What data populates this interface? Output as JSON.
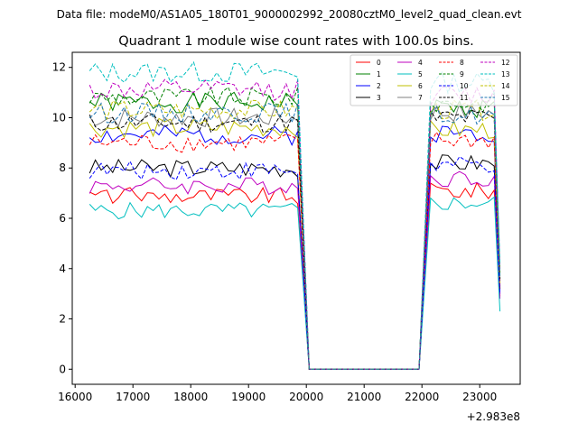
{
  "chart_data": {
    "type": "line",
    "suptitle": "Data file: modeM0/AS1A05_180T01_9000002992_20080cztM0_level2_quad_clean.evt",
    "title": "Quadrant 1 module wise count rates with 100.0s bins.",
    "xlabel": "",
    "ylabel": "",
    "x_offset_label": "+2.983e8",
    "xlim": [
      15950,
      23700
    ],
    "ylim": [
      -0.6,
      12.6
    ],
    "x_ticks": [
      16000,
      17000,
      18000,
      19000,
      20000,
      21000,
      22000,
      23000
    ],
    "y_ticks": [
      0,
      2,
      4,
      6,
      8,
      10,
      12
    ],
    "legend_loc": "upper right",
    "segment1": {
      "x_start": 16250,
      "x_end": 19850,
      "step": 100
    },
    "segment2": {
      "x_start": 22150,
      "x_end": 23250,
      "step": 100
    },
    "gap": {
      "x_start": 20050,
      "x_end": 21950,
      "value": 0
    },
    "end_point": {
      "x": 23350
    },
    "series": [
      {
        "name": "0",
        "color": "#ff0000",
        "dash": "solid",
        "level1": 6.9,
        "level2": 7.1,
        "end": 2.9
      },
      {
        "name": "1",
        "color": "#008000",
        "dash": "solid",
        "level1": 10.6,
        "level2": 10.4,
        "end": 3.5
      },
      {
        "name": "2",
        "color": "#0000ff",
        "dash": "solid",
        "level1": 9.3,
        "level2": 9.4,
        "end": 3.0
      },
      {
        "name": "3",
        "color": "#000000",
        "dash": "solid",
        "level1": 8.0,
        "level2": 8.2,
        "end": 3.2
      },
      {
        "name": "4",
        "color": "#bf00bf",
        "dash": "solid",
        "level1": 7.3,
        "level2": 7.6,
        "end": 2.8
      },
      {
        "name": "5",
        "color": "#00bfbf",
        "dash": "solid",
        "level1": 6.3,
        "level2": 6.6,
        "end": 2.3
      },
      {
        "name": "6",
        "color": "#bfbf00",
        "dash": "solid",
        "level1": 9.6,
        "level2": 9.5,
        "end": 3.4
      },
      {
        "name": "7",
        "color": "#808080",
        "dash": "solid",
        "level1": 10.0,
        "level2": 10.2,
        "end": 3.6
      },
      {
        "name": "8",
        "color": "#ff0000",
        "dash": "dashed",
        "level1": 9.0,
        "level2": 9.1,
        "end": 3.3
      },
      {
        "name": "9",
        "color": "#008000",
        "dash": "dashed",
        "level1": 10.8,
        "level2": 10.6,
        "end": 3.8
      },
      {
        "name": "10",
        "color": "#0000ff",
        "dash": "dashed",
        "level1": 7.9,
        "level2": 8.1,
        "end": 3.0
      },
      {
        "name": "11",
        "color": "#000000",
        "dash": "dashed",
        "level1": 9.8,
        "level2": 10.0,
        "end": 3.6
      },
      {
        "name": "12",
        "color": "#bf00bf",
        "dash": "dashed",
        "level1": 11.1,
        "level2": 10.9,
        "end": 4.0
      },
      {
        "name": "13",
        "color": "#00bfbf",
        "dash": "dashed",
        "level1": 11.8,
        "level2": 11.4,
        "end": 4.2
      },
      {
        "name": "14",
        "color": "#bfbf00",
        "dash": "dashed",
        "level1": 10.3,
        "level2": 10.3,
        "end": 3.7
      },
      {
        "name": "15",
        "color": "#1f77b4",
        "dash": "dashed",
        "level1": 10.2,
        "level2": 10.1,
        "end": 3.7
      }
    ]
  }
}
